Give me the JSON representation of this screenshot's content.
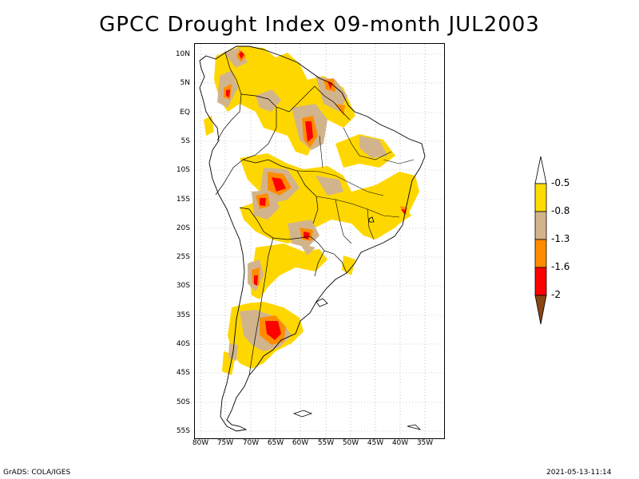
{
  "title": "GPCC Drought Index 09-month JUL2003",
  "footer": {
    "left": "GrADS: COLA/IGES",
    "right": "2021-05-13-11:14"
  },
  "axes": {
    "lat_labels": [
      "10N",
      "5N",
      "EQ",
      "5S",
      "10S",
      "15S",
      "20S",
      "25S",
      "30S",
      "35S",
      "40S",
      "45S",
      "50S",
      "55S"
    ],
    "lon_labels": [
      "80W",
      "75W",
      "70W",
      "65W",
      "60W",
      "55W",
      "50W",
      "45W",
      "40W",
      "35W"
    ]
  },
  "legend": {
    "labels": [
      "-0.5",
      "-0.8",
      "-1.3",
      "-1.6",
      "-2"
    ],
    "colors": [
      "#ffdc00",
      "#d2b48c",
      "#ff8c00",
      "#ff0000",
      "#8b4513"
    ]
  },
  "colors": {
    "yellow": "#ffd700",
    "tan": "#d2b48c",
    "orange": "#ff8c00",
    "red": "#ff0000"
  }
}
